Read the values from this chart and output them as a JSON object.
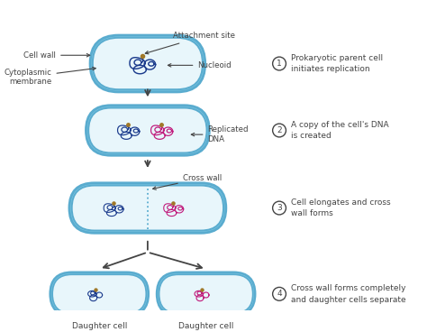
{
  "bg_color": "#ffffff",
  "cell_outer_color": "#7ec8e3",
  "cell_inner_color": "#e8f6fb",
  "cell_border_color": "#5aaccf",
  "dna_blue_color": "#1a3a8c",
  "dna_pink_color": "#c0187a",
  "attachment_dot_color": "#a07828",
  "arrow_color": "#444444",
  "label_color": "#444444",
  "step_labels": [
    "Prokaryotic parent cell\ninitiates replication",
    "A copy of the cell's DNA\nis created",
    "Cell elongates and cross\nwall forms",
    "Cross wall forms completely\nand daughter cells separate"
  ]
}
